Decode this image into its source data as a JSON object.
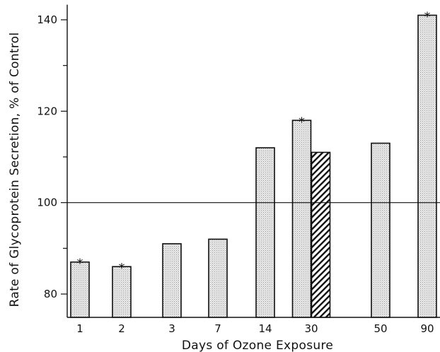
{
  "chart_data": {
    "type": "bar",
    "xlabel": "Days of Ozone Exposure",
    "ylabel": "Rate of Glycoprotein Secretion, % of Control",
    "ylim": [
      75,
      143
    ],
    "yticks": [
      80,
      100,
      120,
      140
    ],
    "reference_line": 100,
    "grid": false,
    "categories": [
      "1",
      "2",
      "3",
      "7",
      "14",
      "30",
      "50",
      "90"
    ],
    "bars": [
      {
        "category": "1",
        "value": 87,
        "pattern": "stippled",
        "significant": true
      },
      {
        "category": "2",
        "value": 86,
        "pattern": "stippled",
        "significant": true
      },
      {
        "category": "3",
        "value": 91,
        "pattern": "stippled",
        "significant": false
      },
      {
        "category": "7",
        "value": 92,
        "pattern": "stippled",
        "significant": false
      },
      {
        "category": "14",
        "value": 112,
        "pattern": "stippled",
        "significant": false
      },
      {
        "category": "30",
        "value": 118,
        "pattern": "stippled",
        "significant": true
      },
      {
        "category": "30",
        "value": 111,
        "pattern": "hatched",
        "significant": false
      },
      {
        "category": "50",
        "value": 113,
        "pattern": "stippled",
        "significant": false
      },
      {
        "category": "90",
        "value": 141,
        "pattern": "stippled",
        "significant": true
      }
    ],
    "significance_marker": "*"
  }
}
